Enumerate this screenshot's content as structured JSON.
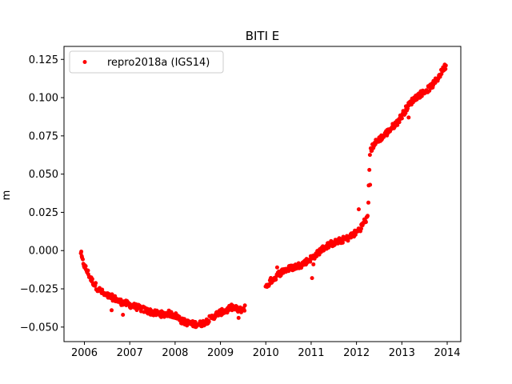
{
  "chart_data": {
    "type": "scatter",
    "title": "BITI E",
    "xlabel": "",
    "ylabel": "m",
    "xlim": [
      2005.55,
      2014.3
    ],
    "ylim": [
      -0.0595,
      0.1335
    ],
    "x_ticks": [
      2006,
      2007,
      2008,
      2009,
      2010,
      2011,
      2012,
      2013,
      2014
    ],
    "x_tick_labels": [
      "2006",
      "2007",
      "2008",
      "2009",
      "2010",
      "2011",
      "2012",
      "2013",
      "2014"
    ],
    "y_ticks": [
      -0.05,
      -0.025,
      0.0,
      0.025,
      0.05,
      0.075,
      0.1,
      0.125
    ],
    "y_tick_labels": [
      "−0.050",
      "−0.025",
      "0.000",
      "0.025",
      "0.050",
      "0.075",
      "0.100",
      "0.125"
    ],
    "grid": false,
    "legend_position": "top-left",
    "series": [
      {
        "name": "repro2018a (IGS14)",
        "color": "#ff0000",
        "marker": "circle",
        "points": [
          [
            2005.92,
            -0.001
          ],
          [
            2005.95,
            -0.006
          ],
          [
            2006.0,
            -0.01
          ],
          [
            2006.05,
            -0.013
          ],
          [
            2006.1,
            -0.016
          ],
          [
            2006.15,
            -0.019
          ],
          [
            2006.2,
            -0.021
          ],
          [
            2006.25,
            -0.023
          ],
          [
            2006.3,
            -0.025
          ],
          [
            2006.38,
            -0.027
          ],
          [
            2006.45,
            -0.029
          ],
          [
            2006.55,
            -0.03
          ],
          [
            2006.65,
            -0.031
          ],
          [
            2006.75,
            -0.033
          ],
          [
            2006.85,
            -0.034
          ],
          [
            2006.95,
            -0.035
          ],
          [
            2007.05,
            -0.036
          ],
          [
            2007.15,
            -0.037
          ],
          [
            2007.25,
            -0.038
          ],
          [
            2007.35,
            -0.039
          ],
          [
            2007.45,
            -0.04
          ],
          [
            2007.55,
            -0.041
          ],
          [
            2007.65,
            -0.041
          ],
          [
            2007.75,
            -0.042
          ],
          [
            2007.85,
            -0.041
          ],
          [
            2007.95,
            -0.042
          ],
          [
            2008.05,
            -0.043
          ],
          [
            2008.15,
            -0.046
          ],
          [
            2008.25,
            -0.047
          ],
          [
            2008.35,
            -0.048
          ],
          [
            2008.45,
            -0.048
          ],
          [
            2008.55,
            -0.048
          ],
          [
            2008.65,
            -0.047
          ],
          [
            2008.75,
            -0.045
          ],
          [
            2008.85,
            -0.043
          ],
          [
            2008.95,
            -0.041
          ],
          [
            2009.05,
            -0.04
          ],
          [
            2009.15,
            -0.039
          ],
          [
            2009.25,
            -0.037
          ],
          [
            2009.42,
            -0.039
          ],
          [
            2009.5,
            -0.038
          ],
          [
            2009.55,
            -0.037
          ],
          [
            2010.0,
            -0.024
          ],
          [
            2010.05,
            -0.022
          ],
          [
            2010.1,
            -0.02
          ],
          [
            2010.15,
            -0.019
          ],
          [
            2010.2,
            -0.018
          ],
          [
            2010.25,
            -0.016
          ],
          [
            2010.3,
            -0.015
          ],
          [
            2010.4,
            -0.013
          ],
          [
            2010.5,
            -0.012
          ],
          [
            2010.6,
            -0.011
          ],
          [
            2010.7,
            -0.01
          ],
          [
            2010.8,
            -0.009
          ],
          [
            2010.9,
            -0.007
          ],
          [
            2011.0,
            -0.005
          ],
          [
            2011.1,
            -0.003
          ],
          [
            2011.2,
            0.0
          ],
          [
            2011.3,
            0.002
          ],
          [
            2011.4,
            0.004
          ],
          [
            2011.5,
            0.005
          ],
          [
            2011.6,
            0.006
          ],
          [
            2011.7,
            0.007
          ],
          [
            2011.8,
            0.008
          ],
          [
            2011.9,
            0.01
          ],
          [
            2012.0,
            0.012
          ],
          [
            2012.1,
            0.015
          ],
          [
            2012.15,
            0.018
          ],
          [
            2012.2,
            0.02
          ],
          [
            2012.25,
            0.021
          ],
          [
            2012.3,
            0.064
          ],
          [
            2012.35,
            0.068
          ],
          [
            2012.4,
            0.07
          ],
          [
            2012.5,
            0.073
          ],
          [
            2012.6,
            0.075
          ],
          [
            2012.7,
            0.078
          ],
          [
            2012.8,
            0.081
          ],
          [
            2012.9,
            0.084
          ],
          [
            2013.0,
            0.088
          ],
          [
            2013.1,
            0.093
          ],
          [
            2013.2,
            0.097
          ],
          [
            2013.3,
            0.1
          ],
          [
            2013.4,
            0.102
          ],
          [
            2013.5,
            0.104
          ],
          [
            2013.6,
            0.106
          ],
          [
            2013.7,
            0.109
          ],
          [
            2013.8,
            0.113
          ],
          [
            2013.9,
            0.118
          ],
          [
            2013.97,
            0.121
          ]
        ],
        "outliers": [
          [
            2006.6,
            -0.039
          ],
          [
            2006.85,
            -0.042
          ],
          [
            2008.1,
            -0.044
          ],
          [
            2009.4,
            -0.044
          ],
          [
            2010.25,
            -0.011
          ],
          [
            2011.02,
            -0.018
          ],
          [
            2011.05,
            -0.009
          ],
          [
            2012.05,
            0.027
          ],
          [
            2012.3,
            0.043
          ],
          [
            2013.15,
            0.087
          ]
        ]
      }
    ]
  }
}
